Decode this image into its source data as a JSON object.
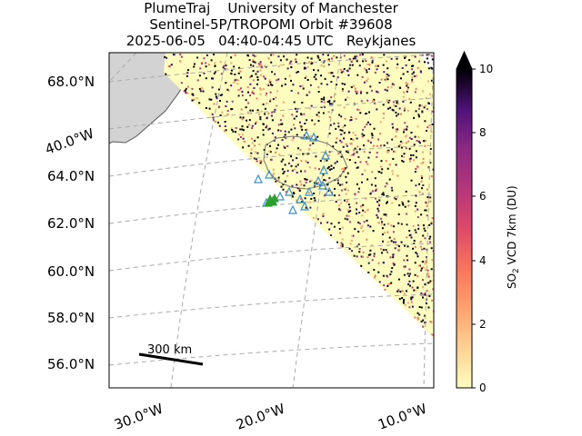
{
  "title": {
    "line1": "PlumeTraj    University of Manchester",
    "line2": "Sentinel-5P/TROPOMI Orbit #39608",
    "line3": "2025-06-05   04:40-04:45 UTC   Reykjanes"
  },
  "map": {
    "lat_labels": [
      "68.0°N",
      "64.0°N",
      "62.0°N",
      "60.0°N",
      "58.0°N",
      "56.0°N"
    ],
    "lon_labels": [
      "40.0°W",
      "30.0°W",
      "20.0°W",
      "10.0°W"
    ],
    "scale_bar_label": "300 km",
    "land_color": "#d3d3d3",
    "marker_color_blue": "#3a8fd0",
    "marker_color_green": "#2ca02c"
  },
  "colorbar": {
    "label_prefix": "SO",
    "label_sub": "2",
    "label_suffix": " VCD 7km (DU)",
    "ticks": [
      "0",
      "2",
      "4",
      "6",
      "8",
      "10"
    ],
    "min": 0,
    "max": 10,
    "colormap": "magma_r"
  }
}
